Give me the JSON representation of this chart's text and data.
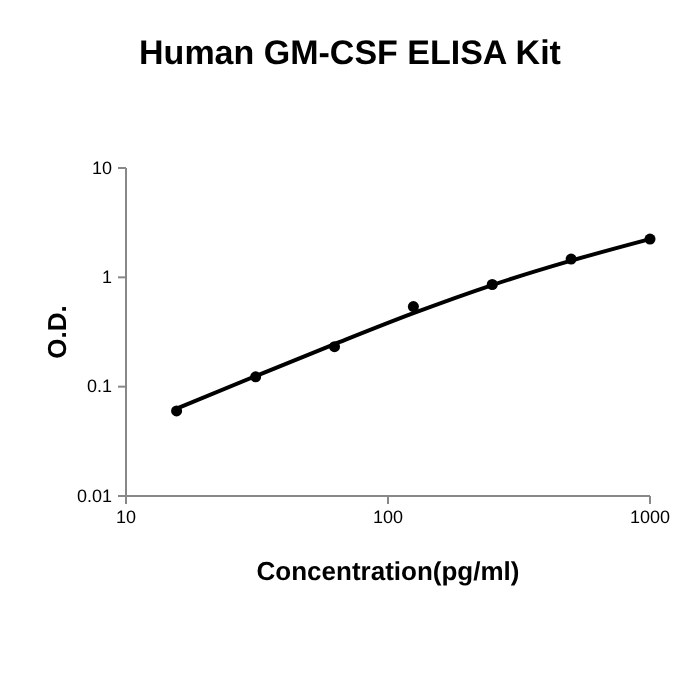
{
  "chart_data": {
    "type": "scatter",
    "title": "Human GM-CSF ELISA Kit",
    "xlabel": "Concentration(pg/ml)",
    "ylabel": "O.D.",
    "log": "xy",
    "xlim": [
      10,
      1000
    ],
    "xticks": [
      10,
      100,
      1000
    ],
    "ylim": [
      0.01,
      10
    ],
    "yticks": [
      0.01,
      0.1,
      1,
      10
    ],
    "grid": false,
    "series": [
      {
        "color": "#000000",
        "marker": "circle",
        "x": [
          15.6,
          31.25,
          62.5,
          125,
          250,
          500,
          1000
        ],
        "values": [
          0.06,
          0.123,
          0.232,
          0.54,
          0.86,
          1.47,
          2.24
        ]
      },
      {
        "type": "line",
        "color": "#000000",
        "marker": "none",
        "line_style": "solid",
        "x": [
          15.6,
          31.25,
          62.5,
          125,
          250,
          500,
          1000
        ],
        "values": [
          0.063,
          0.125,
          0.245,
          0.47,
          0.85,
          1.42,
          2.24
        ]
      }
    ]
  }
}
